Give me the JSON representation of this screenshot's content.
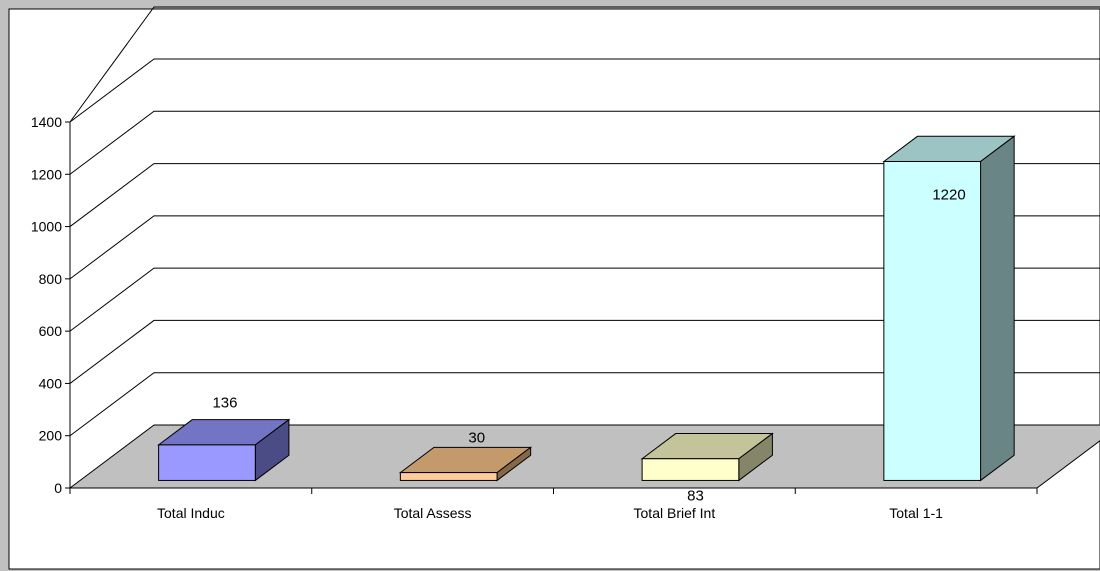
{
  "chart_data": {
    "type": "bar",
    "style": "3d",
    "categories": [
      "Total Induc",
      "Total Assess",
      "Total Brief Int",
      "Total 1-1"
    ],
    "values": [
      136,
      30,
      83,
      1220
    ],
    "data_labels": [
      "136",
      "30",
      "83",
      "1220"
    ],
    "ylim": [
      0,
      1400
    ],
    "yticks": [
      "0",
      "200",
      "400",
      "600",
      "800",
      "1000",
      "1200",
      "1400"
    ],
    "grid": true,
    "legend": "none",
    "floor_color": "#c0c0c0",
    "series_colors": [
      {
        "front": "#9999ff",
        "top": "#7474c4",
        "side": "#4b4b85"
      },
      {
        "front": "#ffcc99",
        "top": "#c4996b",
        "side": "#85674a"
      },
      {
        "front": "#ffffcc",
        "top": "#c4c49b",
        "side": "#858569"
      },
      {
        "front": "#ccffff",
        "top": "#9cc4c4",
        "side": "#6a8585"
      }
    ]
  }
}
